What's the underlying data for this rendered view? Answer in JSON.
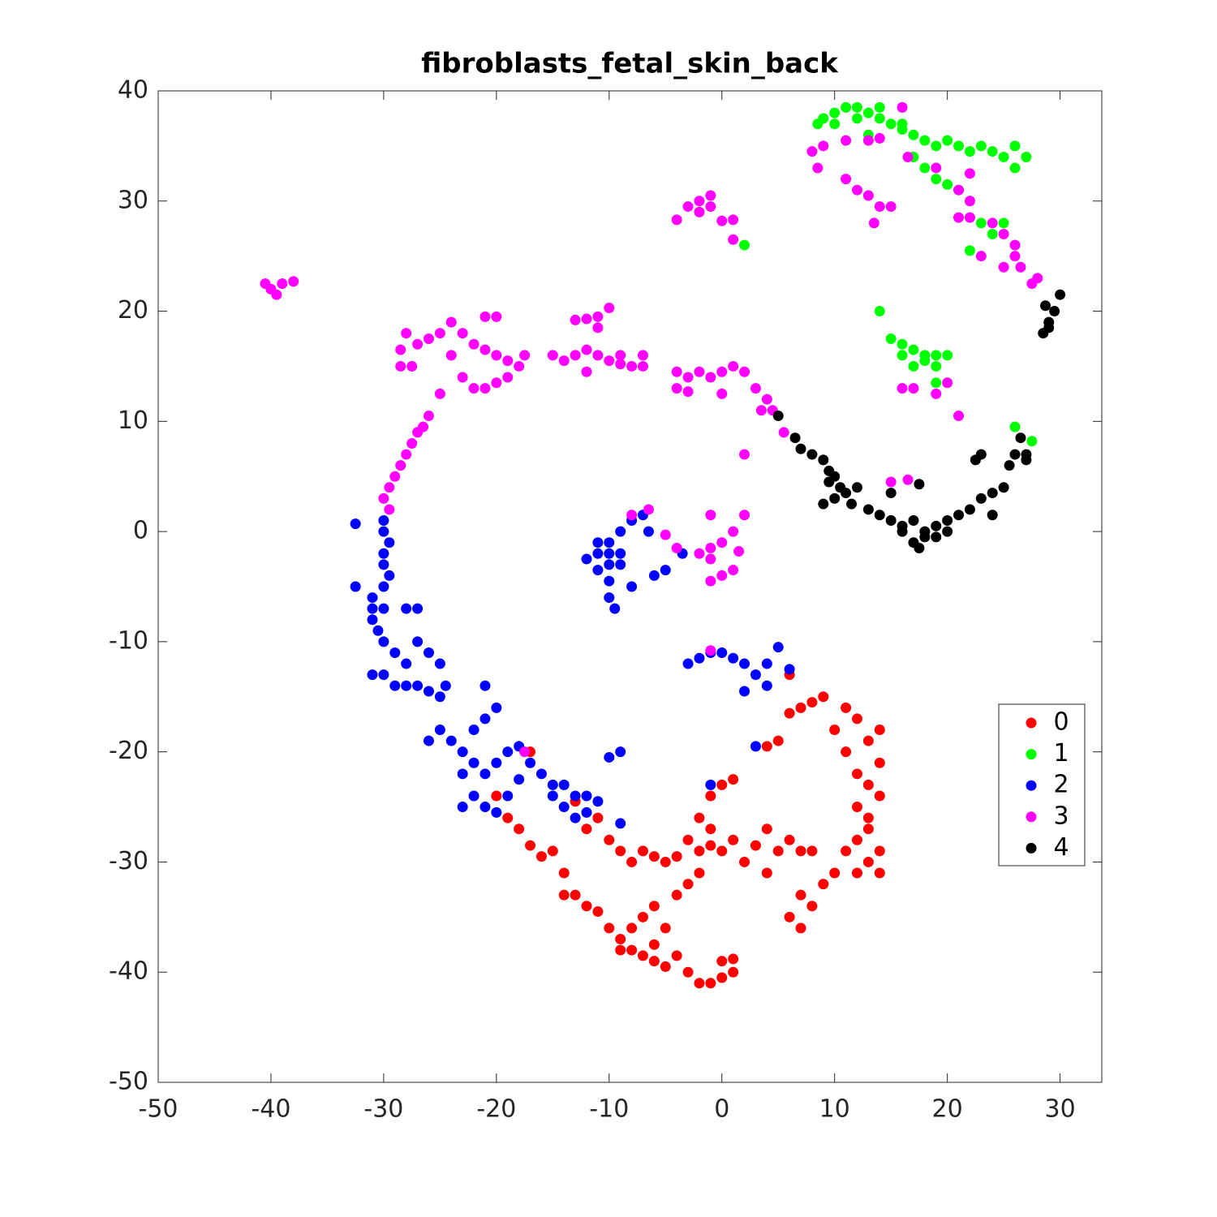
{
  "chart_data": {
    "type": "scatter",
    "title": "fibroblasts_fetal_skin_back",
    "xlim": [
      -50,
      33.7
    ],
    "ylim": [
      -50,
      40
    ],
    "xticks": [
      -50,
      -40,
      -30,
      -20,
      -10,
      0,
      10,
      20,
      30
    ],
    "yticks": [
      -50,
      -40,
      -30,
      -20,
      -10,
      0,
      10,
      20,
      30,
      40
    ],
    "legend": "east",
    "series": [
      {
        "name": "0",
        "color": "#ff0000",
        "x": [
          -20,
          -19,
          -18,
          -17,
          -16,
          -15,
          -14,
          -14,
          -13,
          -12,
          -11,
          -10,
          -9,
          -8,
          -7,
          -6,
          -5,
          -4,
          -3,
          -2,
          -1,
          0,
          1,
          1,
          0,
          -9,
          -8,
          -7,
          -6,
          -5,
          -6,
          -11,
          -10,
          -9,
          -8,
          -7,
          -6,
          -5,
          -4,
          -3,
          -2,
          -1,
          0,
          1,
          2,
          3,
          4,
          5,
          6,
          4,
          -4,
          -3,
          -2,
          -2,
          -1,
          0,
          1,
          -1,
          7,
          6,
          7,
          8,
          9,
          10,
          11,
          12,
          13,
          14,
          13,
          12,
          13,
          14,
          13,
          14,
          12,
          11,
          10,
          11,
          12,
          14,
          13,
          12,
          14,
          8,
          7,
          9,
          8,
          7,
          6,
          6,
          5,
          4,
          -12,
          -17,
          -13
        ],
        "y": [
          -24,
          -26,
          -27,
          -28.5,
          -29.5,
          -29,
          -31,
          -33,
          -33,
          -34,
          -34.5,
          -36,
          -37,
          -38,
          -38.5,
          -39,
          -39.5,
          -38.5,
          -40,
          -41,
          -41,
          -40.5,
          -40,
          -38.8,
          -39,
          -38,
          -36,
          -35,
          -34,
          -36,
          -37.5,
          -26,
          -28,
          -29,
          -30,
          -29,
          -29.5,
          -30,
          -29.5,
          -28,
          -29,
          -28.5,
          -29,
          -28,
          -30,
          -28.5,
          -27,
          -29,
          -28,
          -31,
          -33,
          -32,
          -31,
          -26,
          -27,
          -23,
          -22.5,
          -24,
          -33,
          -35,
          -36,
          -34,
          -32,
          -31,
          -29,
          -28,
          -30,
          -31,
          -27,
          -25,
          -23,
          -21,
          -19,
          -18,
          -17,
          -16,
          -18,
          -20,
          -22,
          -24,
          -26,
          -31,
          -29,
          -29,
          -29,
          -15,
          -15.5,
          -16,
          -16.5,
          -13,
          -19,
          -19.5,
          -27,
          -20,
          -24.5
        ]
      },
      {
        "name": "1",
        "color": "#00ff00",
        "x": [
          8.5,
          9,
          10,
          11,
          12,
          13,
          14,
          15,
          16,
          17,
          18,
          19,
          20,
          21,
          22,
          23,
          24,
          25,
          26,
          27,
          26,
          10,
          12,
          14,
          16,
          17,
          18,
          19,
          20,
          21,
          22,
          23,
          24,
          25,
          26,
          22,
          13,
          2,
          14,
          16,
          17,
          18,
          19,
          20,
          17,
          18,
          19,
          16,
          15,
          20,
          19,
          26,
          27.5
        ],
        "y": [
          37,
          37.5,
          38,
          38.5,
          38.5,
          38,
          37.5,
          37,
          36.5,
          36,
          35.5,
          35,
          35.5,
          35,
          34.5,
          35,
          34.5,
          34,
          33,
          34,
          35,
          37,
          37.5,
          38.5,
          37,
          34,
          33,
          32,
          31.5,
          31,
          30,
          28,
          27,
          28,
          26,
          25.5,
          36,
          26,
          20,
          16,
          16.5,
          16,
          16,
          16,
          15,
          15.5,
          15,
          17,
          17.5,
          13.5,
          13.5,
          9.5,
          8.2
        ]
      },
      {
        "name": "2",
        "color": "#0000ff",
        "x": [
          -30,
          -30,
          -29.5,
          -30,
          -30,
          -29.5,
          -30,
          -32.5,
          -31,
          -31,
          -30,
          -28,
          -27,
          -31,
          -30.5,
          -30,
          -29,
          -28,
          -27,
          -26,
          -25,
          -31,
          -30,
          -29,
          -28,
          -27,
          -26,
          -25,
          -24.5,
          -32.5,
          -26,
          -25,
          -24,
          -23,
          -22,
          -21,
          -20,
          -19,
          -22,
          -21,
          -20,
          -21,
          -23,
          -22,
          -21,
          -20,
          -23,
          -18,
          -17,
          -16,
          -15,
          -14,
          -13,
          -12,
          -11,
          -14,
          -13,
          -12,
          -15,
          -19,
          -18,
          -11,
          -10,
          -9,
          -10,
          -9,
          -8,
          -7,
          -11,
          -10,
          -9.5,
          -8,
          -6,
          -5,
          -3.5,
          -9,
          -10,
          -11,
          -10,
          -6.5,
          -12,
          -3,
          -2,
          -1,
          0,
          1,
          2,
          3,
          4,
          5,
          4,
          2,
          6,
          -10,
          -9,
          3,
          -1,
          -9
        ],
        "y": [
          1,
          0,
          -1,
          -2,
          -3,
          -4,
          -5,
          -5,
          -6,
          -7,
          -7,
          -7,
          -7,
          -8,
          -9,
          -10,
          -11,
          -12,
          -10,
          -11,
          -12,
          -13,
          -13,
          -14,
          -14,
          -14,
          -14.5,
          -15,
          -14,
          0.7,
          -19,
          -18,
          -19,
          -20,
          -21,
          -22,
          -21,
          -20,
          -18,
          -17,
          -16,
          -14,
          -22,
          -24,
          -25,
          -25.5,
          -25,
          -19.5,
          -21,
          -22,
          -23,
          -23,
          -24,
          -24,
          -24.5,
          -25,
          -26,
          -25.5,
          -24,
          -24,
          -22.5,
          -2,
          -3,
          -2,
          -1,
          0,
          1,
          1.5,
          -3.5,
          -4.5,
          -7,
          -5,
          -4,
          -3.5,
          -2,
          -3,
          -2,
          -1,
          -6,
          0,
          -2.5,
          -12,
          -11.5,
          -11,
          -11,
          -11.5,
          -12,
          -13,
          -12,
          -10.5,
          -14,
          -14.5,
          -12.5,
          -20.5,
          -20,
          -19.5,
          -23,
          -26.5
        ]
      },
      {
        "name": "3",
        "color": "#ff00ff",
        "x": [
          -40,
          -39.5,
          -39,
          -40.5,
          -38,
          -28,
          -27,
          -26,
          -25,
          -28.5,
          -28.5,
          -27.5,
          -24,
          -23,
          -22,
          -21,
          -20,
          -21,
          -20,
          -19,
          -18,
          -17.5,
          -19,
          -20,
          -21,
          -22,
          -23,
          -24,
          -25,
          -26,
          -26.5,
          -27,
          -27.5,
          -28,
          -28.5,
          -29,
          -29.5,
          -30,
          -29.5,
          -15,
          -14,
          -13,
          -12,
          -11,
          -10,
          -9,
          -8,
          -7,
          -12,
          -13,
          -12,
          -11,
          -10,
          -11,
          -9,
          -7,
          -4,
          -3,
          -2,
          -1,
          0,
          1,
          2,
          -3,
          0,
          -4,
          3,
          4,
          4.5,
          3.5,
          5.5,
          2,
          -1,
          2,
          -6.5,
          -8,
          -5,
          -4,
          -2,
          -1,
          0,
          1,
          -1,
          -1,
          0,
          1,
          1.5,
          -4,
          -3,
          -2,
          -1,
          0,
          1,
          -2,
          -1,
          1,
          8,
          9,
          8.5,
          11,
          13,
          14,
          11,
          12,
          13,
          14,
          13.5,
          15,
          16,
          16.5,
          19,
          21,
          21,
          22,
          22,
          24,
          25,
          26,
          26,
          25,
          23,
          26.5,
          28,
          27.5,
          16,
          17,
          19,
          20,
          21,
          15,
          16.5,
          -17.5,
          -1,
          22
        ],
        "y": [
          22,
          21.5,
          22.5,
          22.5,
          22.7,
          18,
          17,
          17.5,
          18,
          16.5,
          15,
          15,
          19,
          18,
          17,
          19.5,
          19.5,
          16.5,
          16,
          15.5,
          15,
          16,
          14,
          13.5,
          13,
          13,
          14,
          16,
          12.5,
          10.5,
          9.5,
          9,
          8,
          7,
          6,
          5,
          4,
          3,
          2,
          16,
          15.5,
          16,
          16.5,
          16,
          15.5,
          15.2,
          15,
          15,
          14.5,
          19.2,
          19.3,
          19.5,
          20.3,
          18.5,
          16,
          16,
          14.5,
          14,
          14.5,
          14,
          14.5,
          15,
          14.5,
          12.7,
          12.5,
          13,
          13,
          12,
          11,
          11,
          9,
          7,
          1.5,
          1.5,
          2,
          1.5,
          -0.3,
          -1.5,
          -2,
          -1.5,
          -1,
          0,
          -2.5,
          -4.5,
          -4,
          -3.5,
          -1.8,
          28.3,
          29.5,
          30,
          29.5,
          28.2,
          28.3,
          29,
          30.5,
          26.5,
          34.5,
          35,
          33,
          35.5,
          35.5,
          35.7,
          32,
          31,
          30.5,
          29.5,
          28,
          29.5,
          38.5,
          34,
          33,
          31,
          28.5,
          28.5,
          30,
          28,
          27,
          26,
          25,
          24,
          25,
          24,
          23,
          22.5,
          13,
          13,
          12.5,
          13.5,
          10.5,
          4.5,
          4.7,
          -20,
          -10.8,
          32.5
        ]
      },
      {
        "name": "4",
        "color": "#000000",
        "x": [
          6.5,
          7,
          8,
          9,
          9.5,
          10,
          10.5,
          11,
          12,
          11.5,
          10,
          9,
          9.5,
          13,
          14,
          15,
          16,
          17,
          18,
          19,
          20,
          21,
          22,
          23,
          24,
          25,
          25.5,
          26,
          26.5,
          27,
          22.5,
          23,
          16,
          17,
          17.5,
          18,
          19,
          20,
          15,
          17.5,
          24,
          5,
          28.5,
          29,
          29.5,
          30,
          28.7,
          29,
          27
        ],
        "y": [
          8.5,
          7.5,
          7,
          6.5,
          5.5,
          5,
          4,
          3.5,
          4,
          2.5,
          3,
          2.5,
          4.5,
          2,
          1.5,
          1,
          0.5,
          1,
          0,
          0.5,
          1,
          1.5,
          2,
          3,
          3.5,
          4,
          6,
          7,
          8.5,
          6.5,
          6.5,
          7,
          0,
          -1,
          -1.5,
          -0.5,
          -0.5,
          0,
          3.5,
          4.3,
          1.5,
          10.5,
          18,
          19,
          20,
          21.5,
          20.5,
          18.5,
          7
        ]
      }
    ]
  }
}
